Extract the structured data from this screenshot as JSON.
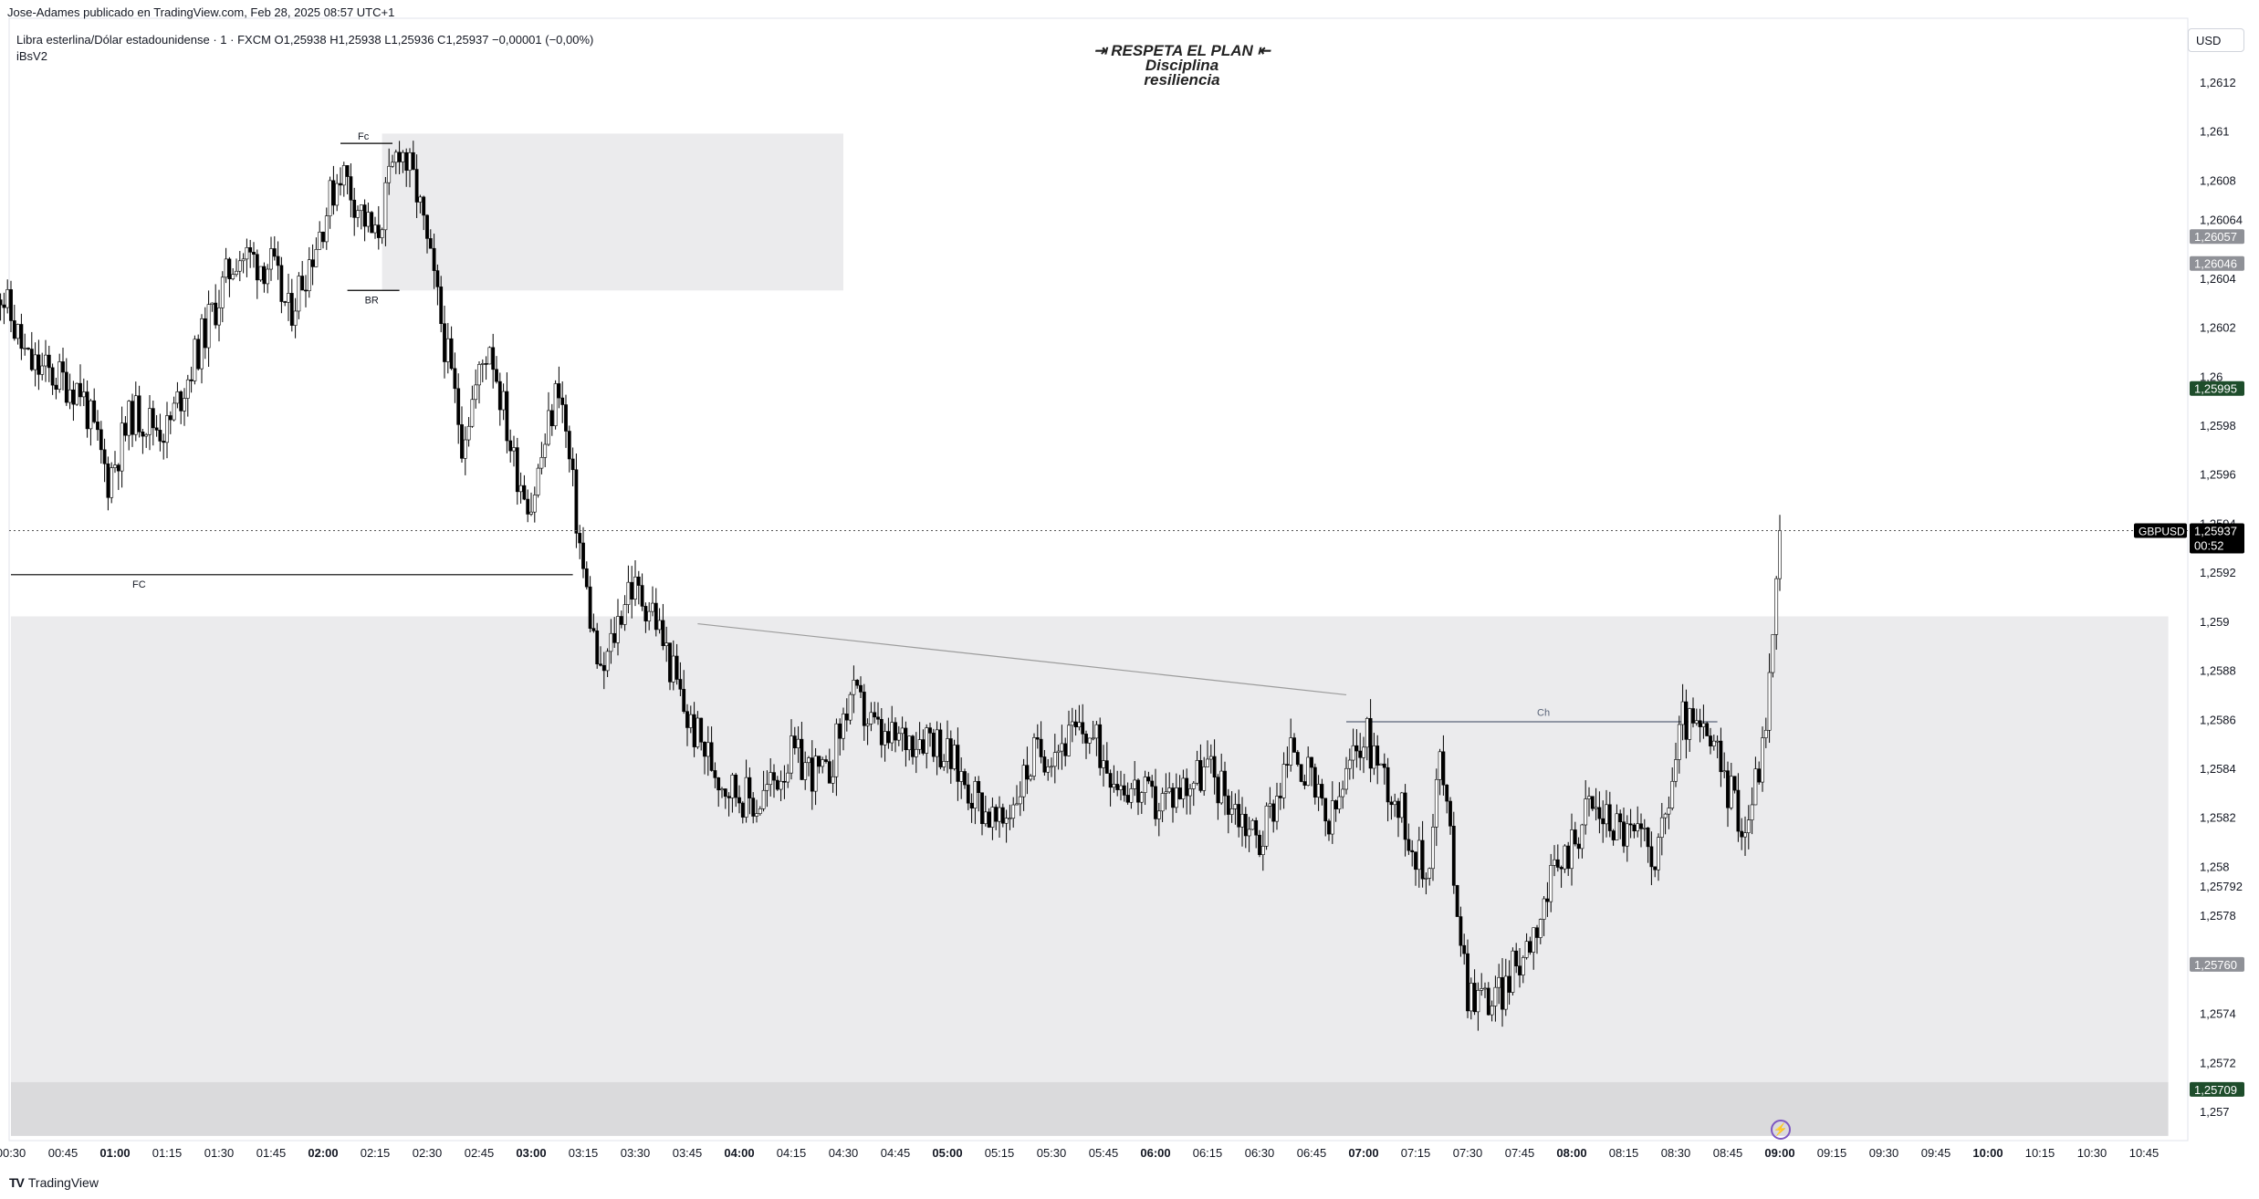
{
  "attribution": "Jose-Adames publicado en TradingView.com, Feb 28, 2025 08:57 UTC+1",
  "header": {
    "symbol_line": "Libra esterlina/Dólar estadounidense · 1 · FXCM  O1,25938  H1,25938  L1,25936  C1,25937  −0,00001 (−0,00%)",
    "indicator": "iBsV2"
  },
  "note": {
    "line1": "⇥ RESPETA  EL PLAN ⇤",
    "line2": "Disciplina",
    "line3": "resiliencia"
  },
  "currency": "USD",
  "brand": {
    "logo": "TV",
    "name": "TradingView"
  },
  "colors": {
    "up": "#ffffff",
    "down": "#000000",
    "zone": "#ebebed",
    "zone_bottom": "#dadadc",
    "label_gray": "#8f9197",
    "label_green": "#1e4d2b"
  },
  "chart_data": {
    "type": "candlestick",
    "symbol": "GBPUSD",
    "timeframe": "1",
    "y_range": [
      1.2569,
      1.2613
    ],
    "y_ticks": [
      1.2612,
      1.261,
      1.2608,
      1.26064,
      1.2604,
      1.2602,
      1.26,
      1.2598,
      1.2596,
      1.2594,
      1.2592,
      1.259,
      1.2588,
      1.2586,
      1.2584,
      1.2582,
      1.258,
      1.25792,
      1.2578,
      1.2574,
      1.2572,
      1.257
    ],
    "x_ticks": [
      {
        "t": "00:30",
        "bold": false
      },
      {
        "t": "00:45",
        "bold": false
      },
      {
        "t": "01:00",
        "bold": true
      },
      {
        "t": "01:15",
        "bold": false
      },
      {
        "t": "01:30",
        "bold": false
      },
      {
        "t": "01:45",
        "bold": false
      },
      {
        "t": "02:00",
        "bold": true
      },
      {
        "t": "02:15",
        "bold": false
      },
      {
        "t": "02:30",
        "bold": false
      },
      {
        "t": "02:45",
        "bold": false
      },
      {
        "t": "03:00",
        "bold": true
      },
      {
        "t": "03:15",
        "bold": false
      },
      {
        "t": "03:30",
        "bold": false
      },
      {
        "t": "03:45",
        "bold": false
      },
      {
        "t": "04:00",
        "bold": true
      },
      {
        "t": "04:15",
        "bold": false
      },
      {
        "t": "04:30",
        "bold": false
      },
      {
        "t": "04:45",
        "bold": false
      },
      {
        "t": "05:00",
        "bold": true
      },
      {
        "t": "05:15",
        "bold": false
      },
      {
        "t": "05:30",
        "bold": false
      },
      {
        "t": "05:45",
        "bold": false
      },
      {
        "t": "06:00",
        "bold": true
      },
      {
        "t": "06:15",
        "bold": false
      },
      {
        "t": "06:30",
        "bold": false
      },
      {
        "t": "06:45",
        "bold": false
      },
      {
        "t": "07:00",
        "bold": true
      },
      {
        "t": "07:15",
        "bold": false
      },
      {
        "t": "07:30",
        "bold": false
      },
      {
        "t": "07:45",
        "bold": false
      },
      {
        "t": "08:00",
        "bold": true
      },
      {
        "t": "08:15",
        "bold": false
      },
      {
        "t": "08:30",
        "bold": false
      },
      {
        "t": "08:45",
        "bold": false
      },
      {
        "t": "09:00",
        "bold": true
      },
      {
        "t": "09:15",
        "bold": false
      },
      {
        "t": "09:30",
        "bold": false
      },
      {
        "t": "09:45",
        "bold": false
      },
      {
        "t": "10:00",
        "bold": true
      },
      {
        "t": "10:15",
        "bold": false
      },
      {
        "t": "10:30",
        "bold": false
      },
      {
        "t": "10:45",
        "bold": false
      }
    ],
    "x_start": "00:30",
    "last_bar": "09:00",
    "price_path": [
      [
        "00:25",
        1.26042
      ],
      [
        "00:35",
        1.26005
      ],
      [
        "00:50",
        1.25995
      ],
      [
        "00:58",
        1.25958
      ],
      [
        "01:05",
        1.25985
      ],
      [
        "01:15",
        1.25978
      ],
      [
        "01:25",
        1.26015
      ],
      [
        "01:35",
        1.2605
      ],
      [
        "01:45",
        1.26045
      ],
      [
        "01:50",
        1.26025
      ],
      [
        "01:58",
        1.26055
      ],
      [
        "02:05",
        1.26085
      ],
      [
        "02:15",
        1.26055
      ],
      [
        "02:22",
        1.26095
      ],
      [
        "02:27",
        1.26075
      ],
      [
        "02:33",
        1.2603
      ],
      [
        "02:40",
        1.25975
      ],
      [
        "02:48",
        1.26015
      ],
      [
        "02:55",
        1.25965
      ],
      [
        "03:00",
        1.25948
      ],
      [
        "03:08",
        1.25998
      ],
      [
        "03:15",
        1.2592
      ],
      [
        "03:20",
        1.25875
      ],
      [
        "03:28",
        1.25915
      ],
      [
        "03:35",
        1.25905
      ],
      [
        "03:45",
        1.2586
      ],
      [
        "03:55",
        1.25835
      ],
      [
        "04:05",
        1.25825
      ],
      [
        "04:15",
        1.25845
      ],
      [
        "04:25",
        1.25835
      ],
      [
        "04:32",
        1.2587
      ],
      [
        "04:42",
        1.2585
      ],
      [
        "04:55",
        1.25855
      ],
      [
        "05:05",
        1.25835
      ],
      [
        "05:15",
        1.25815
      ],
      [
        "05:25",
        1.25845
      ],
      [
        "05:40",
        1.25855
      ],
      [
        "05:50",
        1.25835
      ],
      [
        "06:00",
        1.25825
      ],
      [
        "06:15",
        1.2584
      ],
      [
        "06:30",
        1.2581
      ],
      [
        "06:40",
        1.2585
      ],
      [
        "06:50",
        1.25815
      ],
      [
        "07:00",
        1.25855
      ],
      [
        "07:10",
        1.25825
      ],
      [
        "07:18",
        1.25795
      ],
      [
        "07:22",
        1.25845
      ],
      [
        "07:30",
        1.2575
      ],
      [
        "07:38",
        1.25745
      ],
      [
        "07:45",
        1.25762
      ],
      [
        "07:55",
        1.25795
      ],
      [
        "08:05",
        1.25825
      ],
      [
        "08:15",
        1.25815
      ],
      [
        "08:25",
        1.25805
      ],
      [
        "08:32",
        1.2586
      ],
      [
        "08:40",
        1.2585
      ],
      [
        "08:50",
        1.25815
      ],
      [
        "08:55",
        1.25848
      ],
      [
        "08:58",
        1.25892
      ],
      [
        "09:00",
        1.25937
      ]
    ],
    "price_labels": [
      {
        "text": "1,26057",
        "price": 1.26057,
        "style": "gray"
      },
      {
        "text": "1,26046",
        "price": 1.26046,
        "style": "gray"
      },
      {
        "text": "1,25995",
        "price": 1.25995,
        "style": "green"
      },
      {
        "text": "1,25760",
        "price": 1.2576,
        "style": "gray"
      },
      {
        "text": "1,25709",
        "price": 1.25709,
        "style": "green"
      }
    ],
    "current": {
      "symbol": "GBPUSD",
      "price_text": "1,25937",
      "price": 1.25937,
      "countdown": "00:52"
    },
    "zones": [
      {
        "from": "02:17",
        "to": "04:30",
        "top": 1.26099,
        "bottom": 1.26035,
        "color": "zone"
      },
      {
        "from": "00:30",
        "to": "10:52",
        "top": 1.25902,
        "bottom": 1.25712,
        "color": "zone"
      },
      {
        "from": "00:30",
        "to": "10:52",
        "top": 1.25712,
        "bottom": 1.2569,
        "color": "zone_bottom"
      }
    ],
    "annotations": [
      {
        "text": "Fc",
        "x": "02:10",
        "price": 1.26095
      },
      {
        "text": "BR",
        "x": "02:12",
        "price": 1.26035
      },
      {
        "text": "FC",
        "x": "01:05",
        "price": 1.25919
      },
      {
        "text": "Ch",
        "x": "07:50",
        "price": 1.2586
      }
    ],
    "lines": [
      {
        "from": [
          "02:05",
          1.26095
        ],
        "to": [
          "02:20",
          1.26095
        ],
        "color": "#000000"
      },
      {
        "from": [
          "02:07",
          1.26035
        ],
        "to": [
          "02:22",
          1.26035
        ],
        "color": "#000000"
      },
      {
        "from": [
          "00:30",
          1.25919
        ],
        "to": [
          "03:12",
          1.25919
        ],
        "color": "#000000"
      },
      {
        "from": [
          "03:48",
          1.25899
        ],
        "to": [
          "06:55",
          1.2587
        ],
        "color": "#9c9c9c"
      },
      {
        "from": [
          "06:55",
          1.25859
        ],
        "to": [
          "08:42",
          1.25859
        ],
        "color": "#5a6478"
      }
    ]
  }
}
